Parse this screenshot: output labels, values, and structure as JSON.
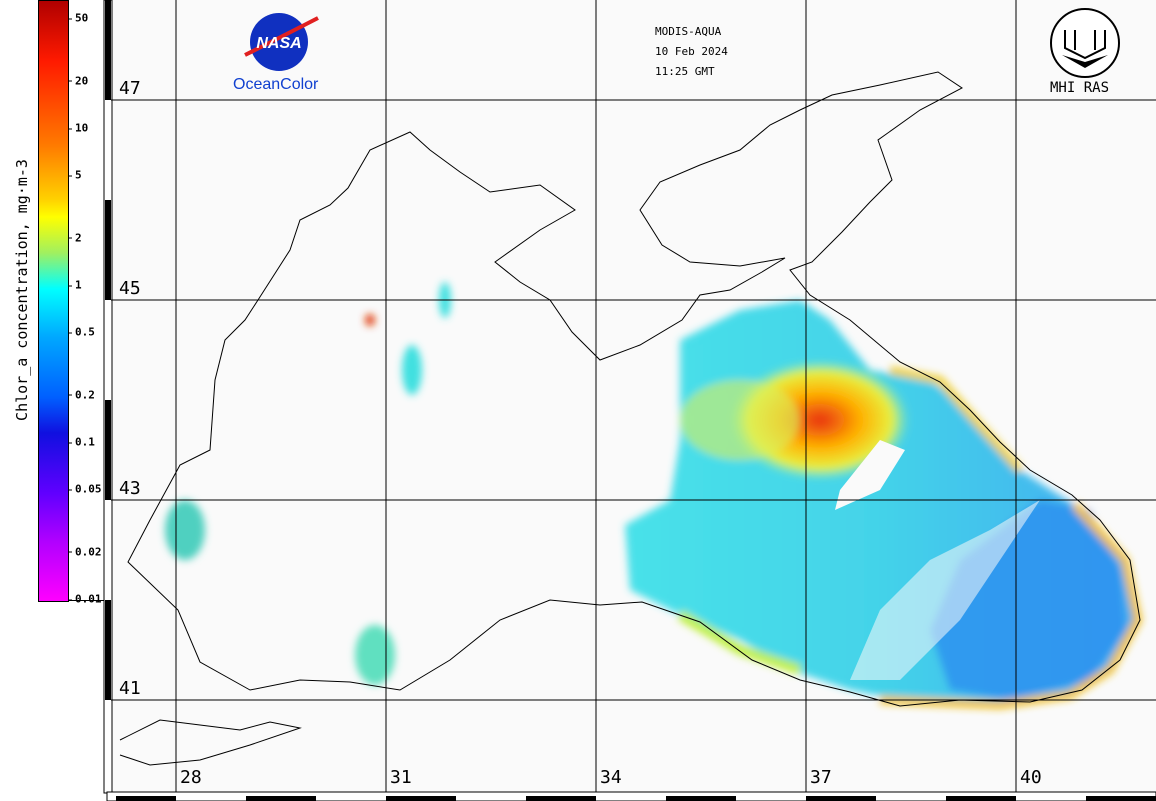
{
  "header": {
    "sensor": "MODIS-AQUA",
    "date": "10 Feb 2024",
    "time": "11:25 GMT"
  },
  "logos": {
    "nasa_logo_text": "NASA",
    "nasa_caption": "OceanColor",
    "mhi_caption": "MHI RAS"
  },
  "colorbar": {
    "title": "Chlor_a concentration, mg·m^-3",
    "title_display": "Chlor_a concentration, mg·m-3",
    "ticks": [
      {
        "label": "50",
        "value": 50
      },
      {
        "label": "20",
        "value": 20
      },
      {
        "label": "10",
        "value": 10
      },
      {
        "label": "5",
        "value": 5
      },
      {
        "label": "2",
        "value": 2
      },
      {
        "label": "1",
        "value": 1
      },
      {
        "label": "0.5",
        "value": 0.5
      },
      {
        "label": "0.2",
        "value": 0.2
      },
      {
        "label": "0.1",
        "value": 0.1
      },
      {
        "label": "0.05",
        "value": 0.05
      },
      {
        "label": "0.02",
        "value": 0.02
      },
      {
        "label": "0.01",
        "value": 0.01
      }
    ],
    "range": [
      0.01,
      70
    ],
    "scale": "log"
  },
  "axes": {
    "latitudes": [
      "47",
      "45",
      "43",
      "41"
    ],
    "longitudes": [
      "28",
      "31",
      "34",
      "37",
      "40"
    ]
  },
  "colors": {
    "land_sea_bg": "#fafafa",
    "coast": "#000000",
    "grid": "#000000"
  }
}
